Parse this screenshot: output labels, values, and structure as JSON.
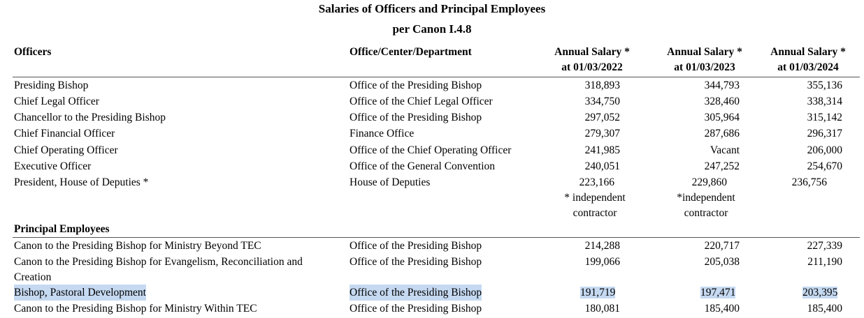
{
  "title": {
    "line1": "Salaries of Officers and Principal Employees",
    "line2": "per Canon I.4.8"
  },
  "headers": {
    "officers": "Officers",
    "office": "Office/Center/Department",
    "s1_a": "Annual Salary *",
    "s1_b": "at 01/03/2022",
    "s2_a": "Annual Salary *",
    "s2_b": "at 01/03/2023",
    "s3_a": "Annual Salary *",
    "s3_b": "at 01/03/2024"
  },
  "officers": [
    {
      "name": "Presiding Bishop",
      "office": "Office of the Presiding Bishop",
      "s2022": "318,893",
      "s2023": "344,793",
      "s2024": "355,136"
    },
    {
      "name": "Chief Legal Officer",
      "office": "Office of the Chief Legal Officer",
      "s2022": "334,750",
      "s2023": "328,460",
      "s2024": "338,314"
    },
    {
      "name": "Chancellor to the Presiding Bishop",
      "office": "Office of the Presiding Bishop",
      "s2022": "297,052",
      "s2023": "305,964",
      "s2024": "315,142"
    },
    {
      "name": "Chief Financial Officer",
      "office": "Finance Office",
      "s2022": "279,307",
      "s2023": "287,686",
      "s2024": "296,317"
    },
    {
      "name": "Chief Operating Officer",
      "office": "Office of the Chief Operating Officer",
      "s2022": "241,985",
      "s2023": "Vacant",
      "s2024": "206,000"
    },
    {
      "name": "Executive Officer",
      "office": "Office of the General Convention",
      "s2022": "240,051",
      "s2023": "247,252",
      "s2024": "254,670"
    },
    {
      "name": "President, House of Deputies *",
      "office": "House of Deputies",
      "s2022": "223,166",
      "s2023": "229,860",
      "s2024": "236,756"
    }
  ],
  "notes": {
    "n2022_a": "* independent",
    "n2022_b": "contractor",
    "n2023_a": "*independent",
    "n2023_b": "contractor"
  },
  "principal_label": "Principal Employees",
  "principal": [
    {
      "name": "Canon to the Presiding Bishop for Ministry Beyond TEC",
      "office": "Office of the Presiding Bishop",
      "s2022": "214,288",
      "s2023": "220,717",
      "s2024": "227,339"
    },
    {
      "name": "Canon to the Presiding Bishop for Evangelism, Reconciliation and",
      "name2": "Creation",
      "office": "Office of the Presiding Bishop",
      "s2022": "199,066",
      "s2023": "205,038",
      "s2024": "211,190"
    },
    {
      "name": "Bishop, Pastoral Development",
      "office": "Office of the Presiding Bishop",
      "s2022": "191,719",
      "s2023": "197,471",
      "s2024": "203,395",
      "highlight_color": "#c5d9f1"
    },
    {
      "name": "Canon to the Presiding Bishop for Ministry Within TEC",
      "office": "Office of the Presiding Bishop",
      "s2022": "180,081",
      "s2023": "185,400",
      "s2024": "185,400"
    }
  ]
}
